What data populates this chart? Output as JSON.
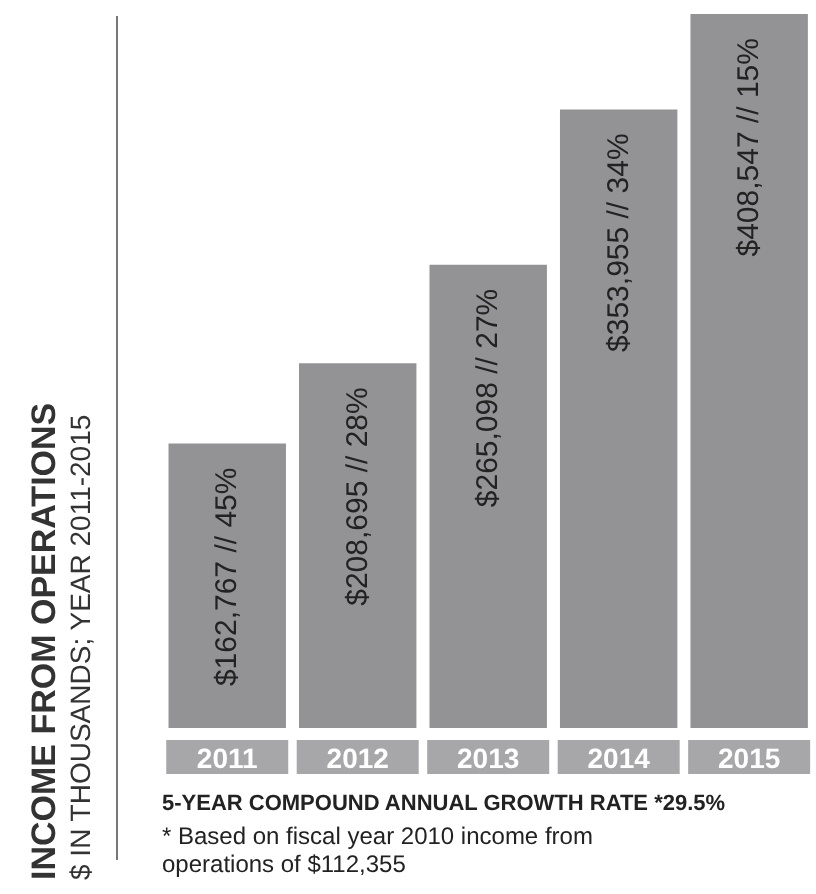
{
  "chart_data": {
    "type": "bar",
    "title": "INCOME FROM OPERATIONS",
    "subtitle": "$ IN THOUSANDS; YEAR 2011-2015",
    "categories": [
      "2011",
      "2012",
      "2013",
      "2014",
      "2015"
    ],
    "values": [
      162767,
      208695,
      265098,
      353955,
      408547
    ],
    "value_labels": [
      "$162,767 // 45%",
      "$208,695 // 28%",
      "$265,098 // 27%",
      "$353,955 // 34%",
      "$408,547 // 15%"
    ],
    "color": "#939395",
    "annotations": [
      "5-YEAR COMPOUND ANNUAL GROWTH RATE *29.5%",
      "* Based on fiscal year 2010 income from operations of $112,355"
    ]
  }
}
